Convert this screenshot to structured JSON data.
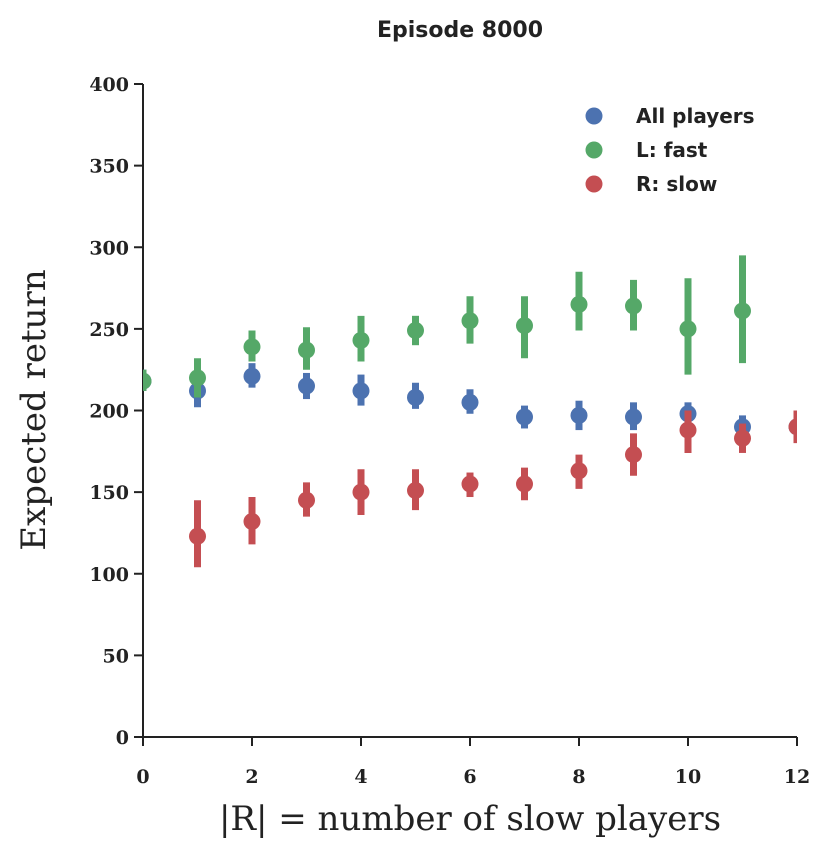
{
  "chart_data": {
    "type": "scatter",
    "title": "Episode 8000",
    "xlabel": "|R| = number of slow players",
    "ylabel": "Expected return",
    "xlim": [
      0,
      12
    ],
    "ylim": [
      0,
      400
    ],
    "xticks": [
      "0",
      "2",
      "4",
      "6",
      "8",
      "10",
      "12"
    ],
    "yticks": [
      "0",
      "50",
      "100",
      "150",
      "200",
      "250",
      "300",
      "350",
      "400"
    ],
    "grid": false,
    "legend_position": "top-right",
    "series": [
      {
        "name": "All players",
        "color": "#4C72B0",
        "points": [
          {
            "x": 0,
            "y": 218,
            "lo": 212,
            "hi": 225
          },
          {
            "x": 1,
            "y": 212,
            "lo": 202,
            "hi": 222
          },
          {
            "x": 2,
            "y": 221,
            "lo": 214,
            "hi": 229
          },
          {
            "x": 3,
            "y": 215,
            "lo": 207,
            "hi": 223
          },
          {
            "x": 4,
            "y": 212,
            "lo": 203,
            "hi": 222
          },
          {
            "x": 5,
            "y": 208,
            "lo": 201,
            "hi": 217
          },
          {
            "x": 6,
            "y": 205,
            "lo": 198,
            "hi": 213
          },
          {
            "x": 7,
            "y": 196,
            "lo": 189,
            "hi": 203
          },
          {
            "x": 8,
            "y": 197,
            "lo": 188,
            "hi": 206
          },
          {
            "x": 9,
            "y": 196,
            "lo": 188,
            "hi": 205
          },
          {
            "x": 10,
            "y": 198,
            "lo": 190,
            "hi": 205
          },
          {
            "x": 11,
            "y": 190,
            "lo": 183,
            "hi": 197
          },
          {
            "x": 12,
            "y": 190,
            "lo": 181,
            "hi": 199
          }
        ]
      },
      {
        "name": "L: fast",
        "color": "#55A868",
        "points": [
          {
            "x": 0,
            "y": 218,
            "lo": 212,
            "hi": 225
          },
          {
            "x": 1,
            "y": 220,
            "lo": 208,
            "hi": 232
          },
          {
            "x": 2,
            "y": 239,
            "lo": 230,
            "hi": 249
          },
          {
            "x": 3,
            "y": 237,
            "lo": 225,
            "hi": 251
          },
          {
            "x": 4,
            "y": 243,
            "lo": 230,
            "hi": 258
          },
          {
            "x": 5,
            "y": 249,
            "lo": 240,
            "hi": 258
          },
          {
            "x": 6,
            "y": 255,
            "lo": 241,
            "hi": 270
          },
          {
            "x": 7,
            "y": 252,
            "lo": 232,
            "hi": 270
          },
          {
            "x": 8,
            "y": 265,
            "lo": 249,
            "hi": 285
          },
          {
            "x": 9,
            "y": 264,
            "lo": 249,
            "hi": 280
          },
          {
            "x": 10,
            "y": 250,
            "lo": 222,
            "hi": 281
          },
          {
            "x": 11,
            "y": 261,
            "lo": 229,
            "hi": 295
          }
        ]
      },
      {
        "name": "R: slow",
        "color": "#C44E52",
        "points": [
          {
            "x": 1,
            "y": 123,
            "lo": 104,
            "hi": 145
          },
          {
            "x": 2,
            "y": 132,
            "lo": 118,
            "hi": 147
          },
          {
            "x": 3,
            "y": 145,
            "lo": 135,
            "hi": 156
          },
          {
            "x": 4,
            "y": 150,
            "lo": 136,
            "hi": 164
          },
          {
            "x": 5,
            "y": 151,
            "lo": 139,
            "hi": 164
          },
          {
            "x": 6,
            "y": 155,
            "lo": 147,
            "hi": 162
          },
          {
            "x": 7,
            "y": 155,
            "lo": 145,
            "hi": 165
          },
          {
            "x": 8,
            "y": 163,
            "lo": 152,
            "hi": 173
          },
          {
            "x": 9,
            "y": 173,
            "lo": 160,
            "hi": 186
          },
          {
            "x": 10,
            "y": 188,
            "lo": 174,
            "hi": 200
          },
          {
            "x": 11,
            "y": 183,
            "lo": 174,
            "hi": 192
          },
          {
            "x": 12,
            "y": 190,
            "lo": 180,
            "hi": 200
          }
        ]
      }
    ]
  }
}
